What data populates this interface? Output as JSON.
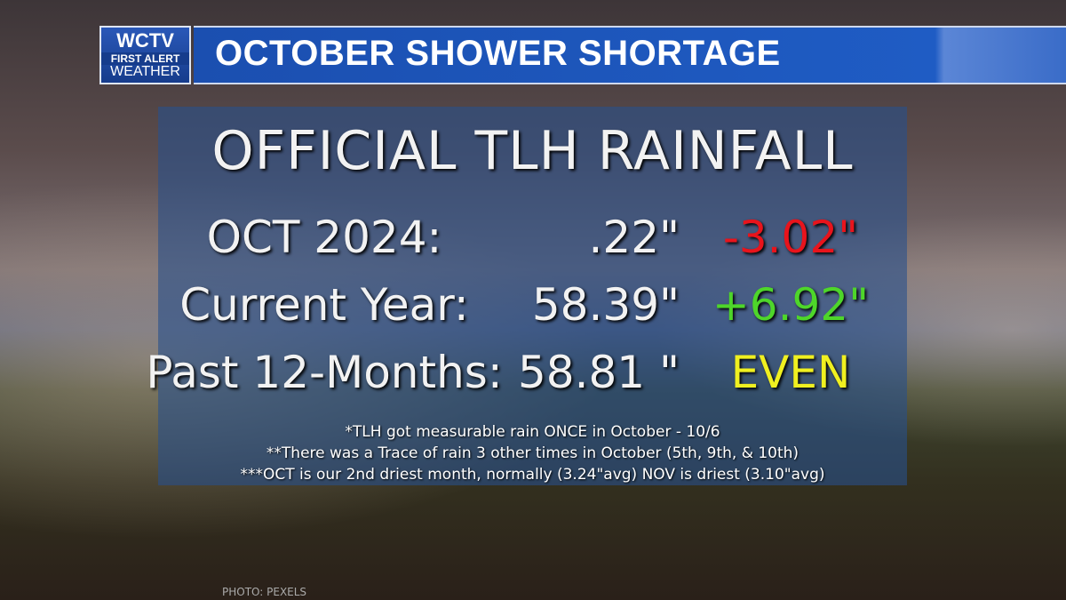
{
  "header": {
    "logo": {
      "station": "WCTV",
      "line1": "FIRST ALERT",
      "line2": "WEATHER"
    },
    "title": "OCTOBER SHOWER SHORTAGE"
  },
  "panel": {
    "title": "OFFICIAL TLH RAINFALL",
    "rows": [
      [
        "OCT 2024:",
        ".22\"",
        "-3.02\""
      ],
      [
        "Current Year:",
        "58.39\"",
        "+6.92\""
      ],
      [
        "Past 12-Months:",
        "58.81 \"",
        "EVEN"
      ]
    ],
    "notes": [
      "*TLH got measurable rain ONCE in October - 10/6",
      "**There was a Trace of rain 3 other times in October (5th, 9th, & 10th)",
      "***OCT is our 2nd driest month, normally (3.24\"avg) NOV is driest (3.10\"avg)"
    ]
  },
  "credit": "PHOTO: PEXELS"
}
